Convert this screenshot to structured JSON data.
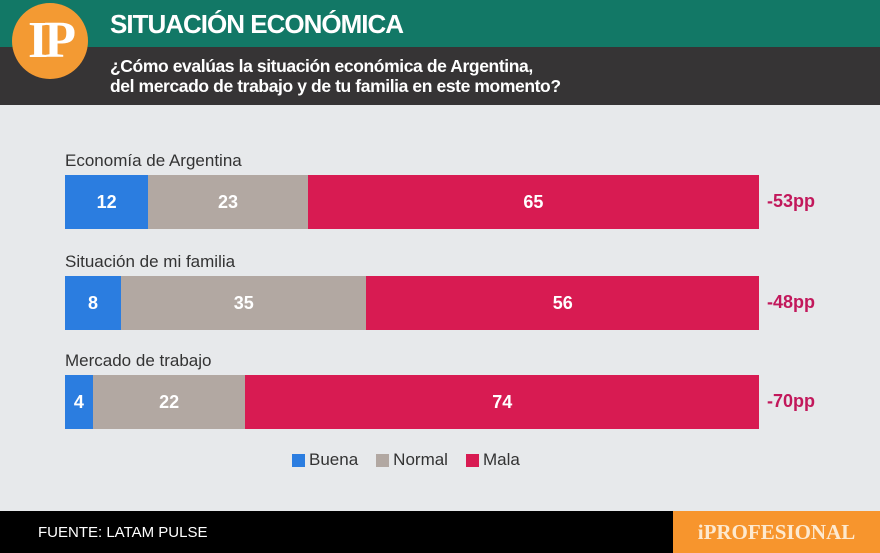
{
  "header": {
    "logo": "IP",
    "title": "SITUACIÓN ECONÓMICA",
    "question_line1": "¿Cómo evalúas la situación económica de Argentina,",
    "question_line2": "del mercado de trabajo y de tu familia en este momento?"
  },
  "chart_data": {
    "type": "bar",
    "orientation": "horizontal",
    "stacked": true,
    "xlim": [
      0,
      100
    ],
    "categories": [
      "Economía de Argentina",
      "Situación de mi familia",
      "Mercado de trabajo"
    ],
    "series": [
      {
        "name": "Buena",
        "color": "#2b7de0",
        "values": [
          12,
          8,
          4
        ]
      },
      {
        "name": "Normal",
        "color": "#b2a8a2",
        "values": [
          23,
          35,
          22
        ]
      },
      {
        "name": "Mala",
        "color": "#d81b52",
        "values": [
          65,
          56,
          74
        ]
      }
    ],
    "net": [
      "-53pp",
      "-48pp",
      "-70pp"
    ],
    "net_color": "#c2185b",
    "legend": "bottom"
  },
  "footer": {
    "source": "FUENTE: LATAM PULSE",
    "brand": "iPROFESIONAL"
  }
}
